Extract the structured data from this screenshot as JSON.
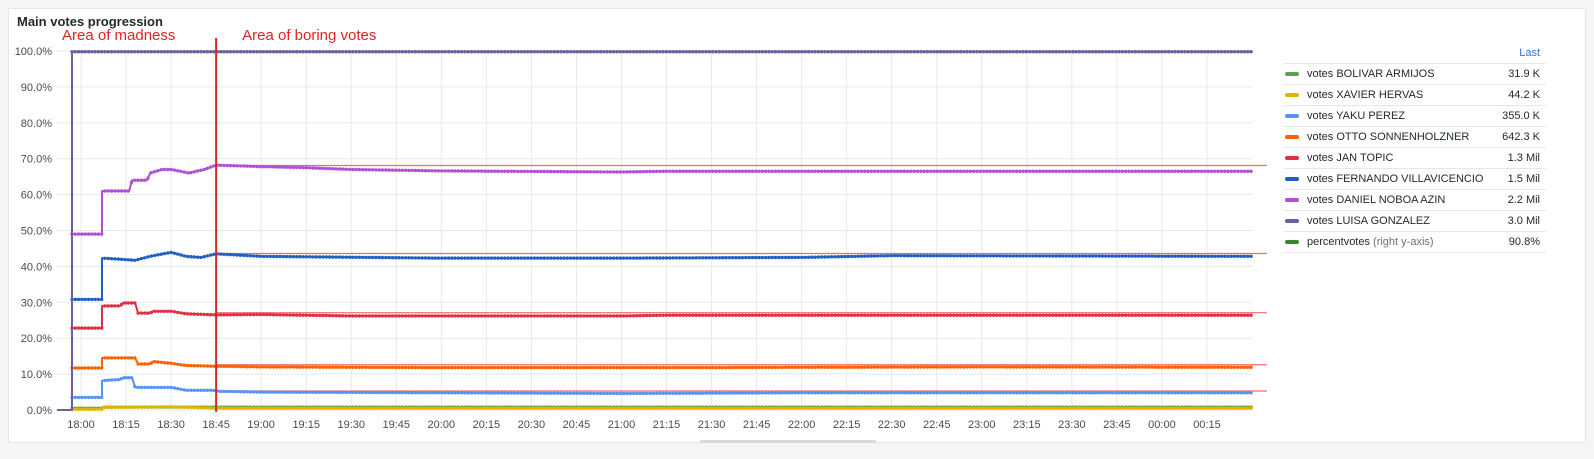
{
  "panel": {
    "title": "Main votes progression"
  },
  "legend": {
    "header": "Last",
    "items": [
      {
        "name": "votes BOLIVAR ARMIJOS",
        "note": "",
        "last": "31.9 K",
        "color": "#56a64b"
      },
      {
        "name": "votes XAVIER HERVAS",
        "note": "",
        "last": "44.2 K",
        "color": "#e0b400"
      },
      {
        "name": "votes YAKU PEREZ",
        "note": "",
        "last": "355.0 K",
        "color": "#5794f2"
      },
      {
        "name": "votes OTTO SONNENHOLZNER",
        "note": "",
        "last": "642.3 K",
        "color": "#fa6400"
      },
      {
        "name": "votes JAN TOPIC",
        "note": "",
        "last": "1.3 Mil",
        "color": "#e02f44"
      },
      {
        "name": "votes FERNANDO VILLAVICENCIO",
        "note": "",
        "last": "1.5 Mil",
        "color": "#1f60c4"
      },
      {
        "name": "votes DANIEL NOBOA AZIN",
        "note": "",
        "last": "2.2 Mil",
        "color": "#b150d4"
      },
      {
        "name": "votes LUISA GONZALEZ",
        "note": "",
        "last": "3.0 Mil",
        "color": "#705da0"
      },
      {
        "name": "percentvotes",
        "note": "(right y-axis)",
        "last": "90.8%",
        "color": "#37872d"
      }
    ]
  },
  "chart_data": {
    "type": "line",
    "title": "Main votes progression",
    "y_tick_labels": [
      "0.0%",
      "10.0%",
      "20.0%",
      "30.0%",
      "40.0%",
      "50.0%",
      "60.0%",
      "70.0%",
      "80.0%",
      "90.0%",
      "100.0%"
    ],
    "ylim": [
      0,
      100
    ],
    "x_tick_labels": [
      "18:00",
      "18:15",
      "18:30",
      "18:45",
      "19:00",
      "19:15",
      "19:30",
      "19:45",
      "20:00",
      "20:15",
      "20:30",
      "20:45",
      "21:00",
      "21:15",
      "21:30",
      "21:45",
      "22:00",
      "22:15",
      "22:30",
      "22:45",
      "23:00",
      "23:15",
      "23:30",
      "23:45",
      "00:00",
      "00:15"
    ],
    "x_ticks_minutes": [
      0,
      15,
      30,
      45,
      60,
      75,
      90,
      105,
      120,
      135,
      150,
      165,
      180,
      195,
      210,
      225,
      240,
      255,
      270,
      285,
      300,
      315,
      330,
      345,
      360,
      375
    ],
    "xlim_minutes": [
      -8,
      390
    ],
    "grid": true,
    "series": [
      {
        "name": "votes BOLIVAR ARMIJOS",
        "color": "#56a64b",
        "points": [
          [
            -8,
            0
          ],
          [
            -3,
            0
          ],
          [
            -3,
            0.5
          ],
          [
            7,
            0.5
          ],
          [
            7,
            0.8
          ],
          [
            390,
            0.8
          ]
        ],
        "last": 0.8
      },
      {
        "name": "votes XAVIER HERVAS",
        "color": "#e0b400",
        "points": [
          [
            -8,
            0
          ],
          [
            -3,
            0
          ],
          [
            -3,
            0.2
          ],
          [
            7,
            0.2
          ],
          [
            7,
            0.7
          ],
          [
            30,
            0.9
          ],
          [
            45,
            0.5
          ],
          [
            390,
            0.5
          ]
        ],
        "last": 0.5
      },
      {
        "name": "votes YAKU PEREZ",
        "color": "#5794f2",
        "points": [
          [
            -8,
            0
          ],
          [
            -3,
            0
          ],
          [
            -3,
            3.5
          ],
          [
            7,
            3.5
          ],
          [
            7,
            8.2
          ],
          [
            13,
            8.5
          ],
          [
            14,
            9.0
          ],
          [
            17,
            9.0
          ],
          [
            18,
            6.3
          ],
          [
            23,
            6.3
          ],
          [
            30,
            6.3
          ],
          [
            35,
            5.5
          ],
          [
            44,
            5.5
          ],
          [
            46,
            5.2
          ],
          [
            60,
            5.0
          ],
          [
            120,
            4.8
          ],
          [
            180,
            4.6
          ],
          [
            240,
            4.8
          ],
          [
            390,
            4.8
          ]
        ],
        "last": 4.8
      },
      {
        "name": "votes OTTO SONNENHOLZNER",
        "color": "#fa6400",
        "points": [
          [
            -8,
            0
          ],
          [
            -3,
            0
          ],
          [
            -3,
            11.7
          ],
          [
            7,
            11.7
          ],
          [
            7,
            14.5
          ],
          [
            18,
            14.5
          ],
          [
            19,
            12.8
          ],
          [
            23,
            12.8
          ],
          [
            24,
            13.5
          ],
          [
            30,
            13.0
          ],
          [
            35,
            12.4
          ],
          [
            45,
            12.2
          ],
          [
            60,
            12.0
          ],
          [
            120,
            11.8
          ],
          [
            210,
            11.8
          ],
          [
            240,
            11.9
          ],
          [
            300,
            12.0
          ],
          [
            390,
            11.9
          ]
        ],
        "last": 11.9
      },
      {
        "name": "votes JAN TOPIC",
        "color": "#e02f44",
        "points": [
          [
            -8,
            0
          ],
          [
            -3,
            0
          ],
          [
            -3,
            22.8
          ],
          [
            7,
            22.8
          ],
          [
            7,
            29.0
          ],
          [
            13,
            29.0
          ],
          [
            14,
            29.8
          ],
          [
            18,
            29.8
          ],
          [
            19,
            27.0
          ],
          [
            23,
            27.0
          ],
          [
            24,
            27.5
          ],
          [
            30,
            27.5
          ],
          [
            35,
            26.8
          ],
          [
            45,
            26.5
          ],
          [
            60,
            26.6
          ],
          [
            90,
            26.2
          ],
          [
            180,
            26.2
          ],
          [
            195,
            26.4
          ],
          [
            390,
            26.4
          ]
        ],
        "last": 26.4
      },
      {
        "name": "votes FERNANDO VILLAVICENCIO",
        "color": "#1f60c4",
        "points": [
          [
            -8,
            0
          ],
          [
            -3,
            0
          ],
          [
            -3,
            30.8
          ],
          [
            7,
            30.8
          ],
          [
            7,
            42.3
          ],
          [
            13,
            42.0
          ],
          [
            18,
            41.7
          ],
          [
            23,
            42.8
          ],
          [
            26,
            43.3
          ],
          [
            30,
            43.9
          ],
          [
            35,
            42.8
          ],
          [
            40,
            42.5
          ],
          [
            45,
            43.5
          ],
          [
            60,
            42.8
          ],
          [
            120,
            42.3
          ],
          [
            180,
            42.3
          ],
          [
            240,
            42.5
          ],
          [
            270,
            43.0
          ],
          [
            390,
            42.8
          ]
        ],
        "last": 42.8
      },
      {
        "name": "votes DANIEL NOBOA AZIN",
        "color": "#b150d4",
        "points": [
          [
            -8,
            0
          ],
          [
            -3,
            0
          ],
          [
            -3,
            49.0
          ],
          [
            7,
            49.0
          ],
          [
            7,
            61.0
          ],
          [
            16,
            61.0
          ],
          [
            17,
            64.0
          ],
          [
            22,
            64.0
          ],
          [
            23,
            66.0
          ],
          [
            27,
            67.0
          ],
          [
            30,
            67.0
          ],
          [
            33,
            66.5
          ],
          [
            36,
            66.0
          ],
          [
            41,
            67.0
          ],
          [
            45,
            68.2
          ],
          [
            60,
            67.8
          ],
          [
            75,
            67.5
          ],
          [
            90,
            67.0
          ],
          [
            120,
            66.6
          ],
          [
            180,
            66.3
          ],
          [
            195,
            66.5
          ],
          [
            390,
            66.5
          ]
        ],
        "last": 66.5
      },
      {
        "name": "votes LUISA GONZALEZ",
        "color": "#705da0",
        "points": [
          [
            -8,
            0
          ],
          [
            -3,
            0
          ],
          [
            -3,
            99.8
          ],
          [
            390,
            99.8
          ]
        ],
        "last": 99.8
      }
    ],
    "annotations": [
      {
        "text": "Area of madness",
        "x_minutes": -7
      },
      {
        "text": "Area of boring votes",
        "x_minutes": 45
      }
    ],
    "region_marker_minutes": 45,
    "threshold_lines": [
      68.1,
      43.6,
      27.1,
      12.6,
      5.3
    ]
  }
}
